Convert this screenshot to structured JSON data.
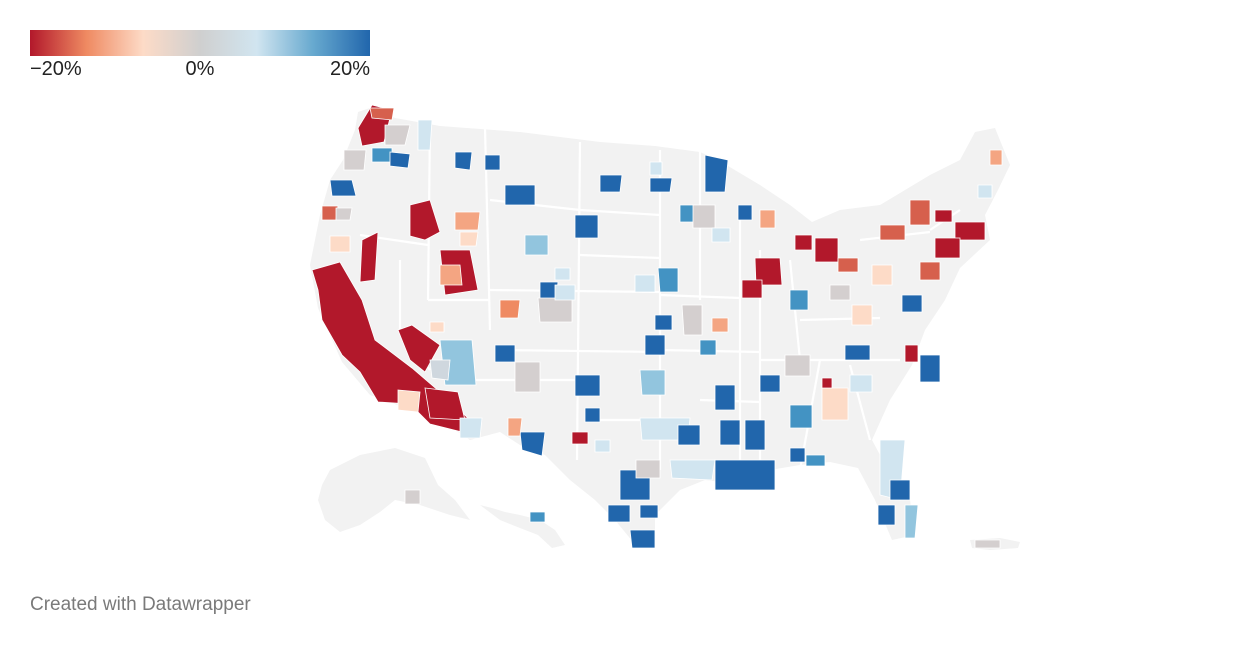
{
  "legend": {
    "min_label": "−20%",
    "mid_label": "0%",
    "max_label": "20%",
    "gradient": [
      "#b2182b",
      "#ef8a62",
      "#fddbc7",
      "#cfcfcf",
      "#d1e5f0",
      "#67a9cf",
      "#2166ac"
    ]
  },
  "colors": {
    "dark_red": "#b2182b",
    "red": "#d6604d",
    "salmon": "#f4a582",
    "peach": "#fddbc7",
    "grey": "#d4cfcf",
    "light_blue": "#d1e5f0",
    "sky_blue": "#92c5de",
    "mid_blue": "#4393c3",
    "dark_blue": "#2166ac",
    "land": "#f2f2f2",
    "border": "#ffffff"
  },
  "credit": "Created with Datawrapper"
}
